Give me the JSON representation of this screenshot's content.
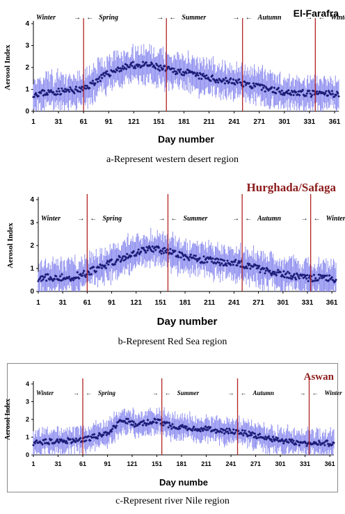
{
  "charts": [
    {
      "id": "a",
      "title": "El-Farafra",
      "title_color": "#000000",
      "xlabel": "Day number",
      "ylabel": "Aerosol Index",
      "caption": "a-Represent western desert region",
      "season_lines": [
        61,
        160,
        251,
        338
      ]
    },
    {
      "id": "b",
      "title": "Hurghada/Safaga",
      "title_color": "#8b1a1a",
      "xlabel": "Day number",
      "ylabel": "Aerosol Index",
      "caption": "b-Represent Red Sea region",
      "season_lines": [
        61,
        160,
        251,
        335
      ]
    },
    {
      "id": "c",
      "title": "Aswan",
      "title_color": "#8b1a1a",
      "xlabel": "Day numbe",
      "ylabel": "Aerosol Index",
      "caption": "c-Represent river Nile region",
      "season_lines": [
        61,
        157,
        249,
        336
      ]
    }
  ],
  "seasons": [
    {
      "label": "Winter",
      "arrow": "→"
    },
    {
      "label": "Spring",
      "arrow": "→"
    },
    {
      "label": "Summer",
      "arrow": "→"
    },
    {
      "label": "Autumn",
      "arrow": "→"
    },
    {
      "label": "Winter",
      "arrow": ""
    }
  ],
  "colors": {
    "marker": "#1c1c78",
    "error_bar": "#8f8ff0",
    "season_line": "#b22222",
    "box": "#888888"
  },
  "chart_data": [
    {
      "type": "scatter",
      "title": "El-Farafra",
      "xlabel": "Day number",
      "ylabel": "Aerosol Index",
      "xticks": [
        1,
        31,
        61,
        91,
        121,
        151,
        181,
        211,
        241,
        271,
        301,
        331,
        361
      ],
      "yticks": [
        0,
        1,
        2,
        3,
        4
      ],
      "xlim": [
        1,
        366
      ],
      "ylim": [
        0,
        4
      ],
      "series": [
        {
          "x": [
            1,
            61,
            80,
            100,
            120,
            140,
            160,
            180,
            200,
            220,
            240,
            250,
            270,
            300,
            330,
            366
          ],
          "y": [
            0.8,
            1.0,
            1.5,
            1.9,
            2.1,
            2.1,
            1.9,
            1.8,
            1.6,
            1.45,
            1.35,
            1.3,
            1.1,
            0.9,
            0.8,
            0.8
          ]
        }
      ],
      "error_bar_halfwidth": 0.6
    },
    {
      "type": "scatter",
      "title": "Hurghada/Safaga",
      "xlabel": "Day number",
      "ylabel": "Aerosol Index",
      "xticks": [
        1,
        31,
        61,
        91,
        121,
        151,
        181,
        211,
        241,
        271,
        301,
        331,
        361
      ],
      "yticks": [
        0,
        1,
        2,
        3,
        4
      ],
      "xlim": [
        1,
        366
      ],
      "ylim": [
        0,
        4
      ],
      "series": [
        {
          "x": [
            1,
            40,
            61,
            80,
            100,
            120,
            140,
            160,
            180,
            200,
            220,
            250,
            270,
            300,
            330,
            366
          ],
          "y": [
            0.6,
            0.6,
            0.8,
            1.1,
            1.4,
            1.7,
            1.85,
            1.75,
            1.5,
            1.4,
            1.3,
            1.2,
            1.0,
            0.75,
            0.6,
            0.55
          ]
        }
      ],
      "error_bar_halfwidth": 0.55
    },
    {
      "type": "scatter",
      "title": "Aswan",
      "xlabel": "Day numbe",
      "ylabel": "Aerosol Index",
      "xticks": [
        1,
        31,
        61,
        91,
        121,
        151,
        181,
        211,
        241,
        271,
        301,
        331,
        361
      ],
      "yticks": [
        0,
        1,
        2,
        3,
        4
      ],
      "xlim": [
        1,
        366
      ],
      "ylim": [
        0,
        4
      ],
      "series": [
        {
          "x": [
            1,
            61,
            90,
            110,
            125,
            150,
            170,
            200,
            230,
            250,
            270,
            300,
            330,
            366
          ],
          "y": [
            0.7,
            0.85,
            1.2,
            2.0,
            1.7,
            1.9,
            1.6,
            1.5,
            1.35,
            1.3,
            1.1,
            0.8,
            0.65,
            0.65
          ]
        }
      ],
      "error_bar_halfwidth": 0.55
    }
  ]
}
